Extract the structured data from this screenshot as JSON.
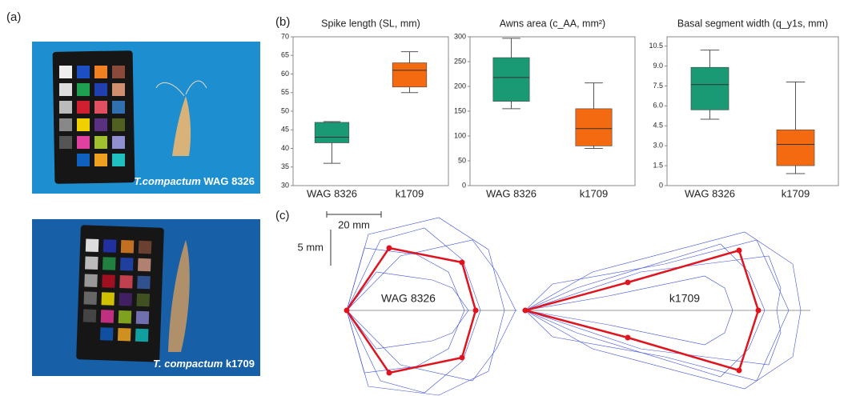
{
  "panels": [
    "(a)",
    "(b)",
    "(c)"
  ],
  "photos": [
    {
      "species": "T.compactum",
      "line": "WAG 8326"
    },
    {
      "species": "T. compactum",
      "line": "k1709"
    }
  ],
  "outline": {
    "scale_x": "20 mm",
    "scale_y": "5 mm",
    "labels": [
      "WAG 8326",
      "k1709"
    ]
  },
  "chart_data": [
    {
      "type": "box",
      "title": "Spike length (SL, mm)",
      "categories": [
        "WAG 8326",
        "k1709"
      ],
      "colors": [
        "#1a9a74",
        "#f36a10"
      ],
      "stats": [
        {
          "min": 36,
          "q1": 41.5,
          "median": 43,
          "q3": 47,
          "max": 47.2
        },
        {
          "min": 55,
          "q1": 56.5,
          "median": 61,
          "q3": 63,
          "max": 66
        }
      ],
      "ylim": [
        30,
        70
      ],
      "yticks": [
        30,
        35,
        40,
        45,
        50,
        55,
        60,
        65,
        70
      ]
    },
    {
      "type": "box",
      "title": "Awns area (c_AA, mm²)",
      "categories": [
        "WAG 8326",
        "k1709"
      ],
      "colors": [
        "#1a9a74",
        "#f36a10"
      ],
      "stats": [
        {
          "min": 155,
          "q1": 170,
          "median": 218,
          "q3": 258,
          "max": 297
        },
        {
          "min": 75,
          "q1": 80,
          "median": 115,
          "q3": 155,
          "max": 207
        }
      ],
      "ylim": [
        0,
        300
      ],
      "yticks": [
        0,
        50,
        100,
        150,
        200,
        250,
        300
      ]
    },
    {
      "type": "box",
      "title": "Basal segment width (q_y1s, mm)",
      "categories": [
        "WAG 8326",
        "k1709"
      ],
      "colors": [
        "#1a9a74",
        "#f36a10"
      ],
      "stats": [
        {
          "min": 5,
          "q1": 5.7,
          "median": 7.6,
          "q3": 8.9,
          "max": 10.2
        },
        {
          "min": 0.9,
          "q1": 1.5,
          "median": 3.1,
          "q3": 4.2,
          "max": 7.8
        }
      ],
      "ylim": [
        0,
        11.2
      ],
      "yticks": [
        0,
        1.5,
        {
          "value": 3,
          "label": "3.0"
        },
        4.5,
        {
          "value": 6,
          "label": "6.0"
        },
        7.5,
        {
          "value": 9,
          "label": "9.0"
        },
        10.5
      ]
    }
  ]
}
